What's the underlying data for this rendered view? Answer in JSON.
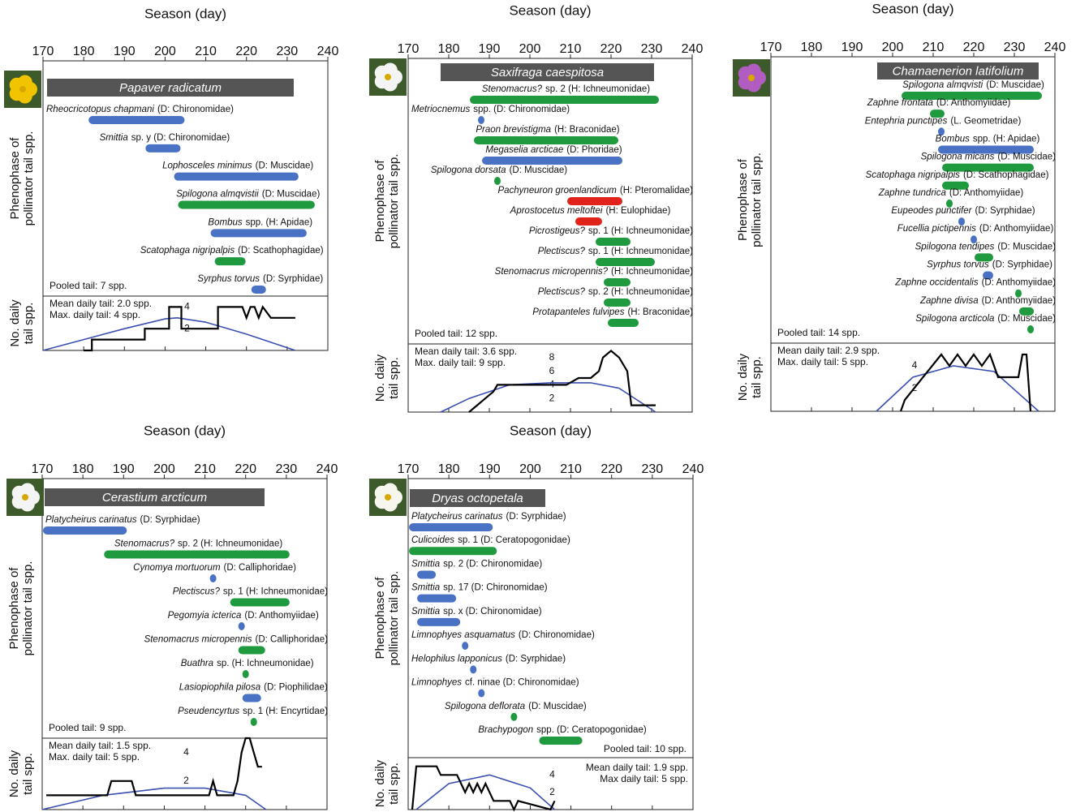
{
  "chart_data": [
    {
      "type": "range",
      "title": "Papaver radicatum",
      "xlabel": "Season (day)",
      "ylabel": [
        "Phenophase of",
        "pollinator tail spp."
      ],
      "xlim": [
        170,
        240
      ],
      "xticks": [
        170,
        180,
        190,
        200,
        210,
        220,
        230,
        240
      ],
      "series": [
        {
          "name": "Rheocricotopus chapmani",
          "rest": "(D: Chironomidae)",
          "color": "#4a72c4",
          "start": 182,
          "end": 204
        },
        {
          "name": "Smittia",
          "rest": "sp. y (D: Chironomidae)",
          "color": "#4a72c4",
          "start": 196,
          "end": 203
        },
        {
          "name": "Lophosceles minimus",
          "rest": "(D: Muscidae)",
          "color": "#4a72c4",
          "start": 203,
          "end": 232
        },
        {
          "name": "Spilogona almqvistii",
          "rest": "(D: Muscidae)",
          "color": "#1f9a3e",
          "start": 204,
          "end": 236
        },
        {
          "name": "Bombus",
          "rest": "spp. (H: Apidae)",
          "color": "#4a72c4",
          "start": 212,
          "end": 234
        },
        {
          "name": "Scatophaga nigripalpis",
          "rest": "(D: Scathophagidae)",
          "color": "#1f9a3e",
          "start": 213,
          "end": 219
        },
        {
          "name": "Syrphus torvus",
          "rest": "(D: Syrphidae)",
          "color": "#4a72c4",
          "start": 222,
          "end": 224
        }
      ],
      "pooled": "Pooled tail: 7 spp.",
      "mean": "Mean daily tail: 2.0 spp.",
      "max": "Max. daily tail: 4 spp.",
      "daily": {
        "ylabel": [
          "No. daily",
          "tail spp."
        ],
        "ylim": [
          0,
          5
        ],
        "yticks": [
          2,
          4
        ],
        "x": [
          180,
          182,
          182,
          195,
          195,
          201,
          201,
          204,
          204,
          213,
          213,
          219,
          220,
          221,
          222,
          223,
          224,
          226,
          232
        ],
        "values": [
          0,
          0,
          1,
          1,
          2,
          2,
          4,
          4,
          2,
          2,
          4,
          4,
          3,
          4,
          4,
          3,
          4,
          3,
          3
        ],
        "model_x": [
          170,
          180,
          190,
          200,
          203,
          210,
          220,
          232
        ],
        "model_values": [
          0,
          1,
          2,
          2.9,
          3,
          2.6,
          1.5,
          0
        ]
      }
    },
    {
      "type": "range",
      "title": "Saxifraga caespitosa",
      "xlabel": "Season (day)",
      "ylabel": [
        "Phenophase of",
        "pollinator tail spp."
      ],
      "xlim": [
        170,
        240
      ],
      "xticks": [
        170,
        180,
        190,
        200,
        210,
        220,
        230,
        240
      ],
      "series": [
        {
          "name": "Stenomacrus?",
          "rest": "sp. 2 (H: Ichneumonidae)",
          "color": "#1f9a3e",
          "start": 186,
          "end": 231
        },
        {
          "name": "Metriocnemus",
          "rest": "spp. (D: Chironomidae)",
          "color": "#4a72c4",
          "start": 188,
          "end": 188
        },
        {
          "name": "Praon brevistigma",
          "rest": "(H: Braconidae)",
          "color": "#1f9a3e",
          "start": 187,
          "end": 221
        },
        {
          "name": "Megaselia arcticae",
          "rest": "(D: Phoridae)",
          "color": "#4a72c4",
          "start": 189,
          "end": 222
        },
        {
          "name": "Spilogona dorsata",
          "rest": "(D: Muscidae)",
          "color": "#1f9a3e",
          "start": 192,
          "end": 192
        },
        {
          "name": "Pachyneuron groenlandicum",
          "rest": "(H: Pteromalidae)",
          "color": "#e0241b",
          "start": 210,
          "end": 222
        },
        {
          "name": "Aprostocetus meltoftei",
          "rest": "(H: Eulophidae)",
          "color": "#e0241b",
          "start": 212,
          "end": 217
        },
        {
          "name": "Picrostigeus?",
          "rest": "sp. 1 (H: Ichneumonidae)",
          "color": "#1f9a3e",
          "start": 217,
          "end": 224
        },
        {
          "name": "Plectiscus?",
          "rest": "sp. 1 (H: Ichneumonidae)",
          "color": "#1f9a3e",
          "start": 217,
          "end": 230
        },
        {
          "name": "Stenomacrus micropennis?",
          "rest": "(H: Ichneumonidae)",
          "color": "#1f9a3e",
          "start": 219,
          "end": 224
        },
        {
          "name": "Plectiscus?",
          "rest": "sp. 2 (H: Ichneumonidae)",
          "color": "#1f9a3e",
          "start": 219,
          "end": 224
        },
        {
          "name": "Protapanteles fulvipes",
          "rest": "(H: Braconidae)",
          "color": "#1f9a3e",
          "start": 220,
          "end": 226
        }
      ],
      "pooled": "Pooled tail: 12 spp.",
      "mean": "Mean daily tail: 3.6 spp.",
      "max": "Max. daily tail: 9 spp.",
      "daily": {
        "ylabel": [
          "No. daily",
          "tail spp."
        ],
        "ylim": [
          0,
          10
        ],
        "yticks": [
          2,
          4,
          6,
          8
        ],
        "x": [
          185,
          187,
          189,
          191,
          192,
          200,
          209,
          212,
          215,
          217,
          218,
          220,
          222,
          224,
          225,
          231
        ],
        "values": [
          0,
          1,
          2,
          3,
          4,
          4,
          4,
          5,
          5,
          6,
          8,
          9,
          8,
          6,
          1,
          1
        ],
        "model_x": [
          178,
          185,
          195,
          205,
          215,
          222,
          231
        ],
        "model_values": [
          0,
          2,
          4,
          4.3,
          4.3,
          3.5,
          0
        ]
      }
    },
    {
      "type": "range",
      "title": "Chamaenerion latifolium",
      "xlabel": "Season (day)",
      "ylabel": [
        "Phenophase of",
        "pollinator tail spp."
      ],
      "xlim": [
        170,
        240
      ],
      "xticks": [
        170,
        180,
        190,
        200,
        210,
        220,
        230,
        240
      ],
      "series": [
        {
          "name": "Spilogona almqvisti",
          "rest": "(D: Muscidae)",
          "color": "#1f9a3e",
          "start": 203,
          "end": 236
        },
        {
          "name": "Zaphne frontata",
          "rest": "(D: Anthomyiidae)",
          "color": "#1f9a3e",
          "start": 210,
          "end": 212
        },
        {
          "name": "Entephria punctipes",
          "rest": "(L. Geometridae)",
          "color": "#4a72c4",
          "start": 212,
          "end": 212
        },
        {
          "name": "Bombus",
          "rest": "spp. (H: Apidae)",
          "color": "#4a72c4",
          "start": 212,
          "end": 234
        },
        {
          "name": "Spilogona micans",
          "rest": "(D: Muscidae)",
          "color": "#1f9a3e",
          "start": 213,
          "end": 234
        },
        {
          "name": "Scatophaga nigripalpis",
          "rest": "(D: Scathophagidae)",
          "color": "#1f9a3e",
          "start": 213,
          "end": 218
        },
        {
          "name": "Zaphne tundrica",
          "rest": "(D: Anthomyiidae)",
          "color": "#1f9a3e",
          "start": 214,
          "end": 214
        },
        {
          "name": "Eupeodes punctifer",
          "rest": "(D: Syrphidae)",
          "color": "#4a72c4",
          "start": 217,
          "end": 217
        },
        {
          "name": "Fucellia pictipennis",
          "rest": "(D: Anthomyiidae)",
          "color": "#4a72c4",
          "start": 220,
          "end": 220
        },
        {
          "name": "Spilogona tendipes",
          "rest": "(D: Muscidae)",
          "color": "#1f9a3e",
          "start": 221,
          "end": 224
        },
        {
          "name": "Syrphus torvus",
          "rest": "(D: Syrphidae)",
          "color": "#4a72c4",
          "start": 223,
          "end": 224
        },
        {
          "name": "Zaphne occidentalis",
          "rest": "(D: Anthomyiidae)",
          "color": "#1f9a3e",
          "start": 231,
          "end": 231
        },
        {
          "name": "Zaphne divisa",
          "rest": "(D: Anthomyiidae)",
          "color": "#1f9a3e",
          "start": 232,
          "end": 234
        },
        {
          "name": "Spilogona arcticola",
          "rest": "(D: Muscidae)",
          "color": "#1f9a3e",
          "start": 234,
          "end": 234
        }
      ],
      "pooled": "Pooled tail: 14 spp.",
      "mean": "Mean daily tail: 2.9 spp.",
      "max": "Max. daily tail: 5 spp.",
      "daily": {
        "ylabel": [
          "No. daily",
          "tail spp."
        ],
        "ylim": [
          0,
          6
        ],
        "yticks": [
          2,
          4
        ],
        "x": [
          202,
          203,
          203,
          212,
          214,
          216,
          218,
          220,
          222,
          224,
          226,
          231,
          232,
          233,
          234
        ],
        "values": [
          0,
          1,
          1,
          5,
          4,
          5,
          4,
          5,
          4,
          5,
          3,
          3,
          5,
          5,
          0
        ],
        "model_x": [
          196,
          205,
          215,
          225,
          236
        ],
        "model_values": [
          0,
          3,
          4,
          3.5,
          0
        ]
      }
    },
    {
      "type": "range",
      "title": "Cerastium arcticum",
      "xlabel": "Season (day)",
      "ylabel": [
        "Phenophase of",
        "pollinator tail spp."
      ],
      "xlim": [
        170,
        240
      ],
      "xticks": [
        170,
        180,
        190,
        200,
        210,
        220,
        230,
        240
      ],
      "series": [
        {
          "name": "Platycheirus carinatus",
          "rest": "(D: Syrphidae)",
          "color": "#4a72c4",
          "start": 171,
          "end": 190
        },
        {
          "name": "Stenomacrus?",
          "rest": "sp. 2 (H: Ichneumonidae)",
          "color": "#1f9a3e",
          "start": 186,
          "end": 230
        },
        {
          "name": "Cynomya mortuorum",
          "rest": "(D: Calliphoridae)",
          "color": "#4a72c4",
          "start": 212,
          "end": 212
        },
        {
          "name": "Plectiscus?",
          "rest": "sp. 1 (H: Ichneumonidae)",
          "color": "#1f9a3e",
          "start": 217,
          "end": 230
        },
        {
          "name": "Pegomyia icterica",
          "rest": "(D: Anthomyiidae)",
          "color": "#4a72c4",
          "start": 219,
          "end": 219
        },
        {
          "name": "Stenomacrus micropennis",
          "rest": "(D: Calliphoridae)",
          "color": "#1f9a3e",
          "start": 219,
          "end": 224
        },
        {
          "name": "Buathra",
          "rest": "sp. (H: Ichneumonidae)",
          "color": "#1f9a3e",
          "start": 220,
          "end": 220
        },
        {
          "name": "Lasiopiophila pilosa",
          "rest": "(D: Piophilidae)",
          "color": "#4a72c4",
          "start": 220,
          "end": 223
        },
        {
          "name": "Pseudencyrtus",
          "rest": "sp. 1 (H: Encyrtidae)",
          "color": "#1f9a3e",
          "start": 222,
          "end": 222
        }
      ],
      "pooled": "Pooled tail: 9 spp.",
      "mean": "Mean daily tail: 1.5 spp.",
      "max": "Max. daily tail: 5 spp.",
      "daily": {
        "ylabel": [
          "No. daily",
          "tail spp."
        ],
        "ylim": [
          0,
          5
        ],
        "yticks": [
          2,
          4
        ],
        "x": [
          171,
          186,
          187,
          192,
          193,
          211,
          212,
          213,
          217,
          218,
          219,
          220,
          221,
          222,
          223,
          224
        ],
        "values": [
          1,
          1,
          2,
          2,
          1,
          1,
          2,
          1,
          1,
          2,
          4,
          5,
          5,
          4,
          3,
          3
        ],
        "model_x": [
          170,
          185,
          200,
          210,
          220,
          225
        ],
        "model_values": [
          0,
          1,
          1.5,
          1.5,
          1,
          0
        ]
      }
    },
    {
      "type": "range",
      "title": "Dryas octopetala",
      "xlabel": "Season (day)",
      "ylabel": [
        "Phenophase of",
        "pollinator tail spp."
      ],
      "xlim": [
        170,
        240
      ],
      "xticks": [
        170,
        180,
        190,
        200,
        210,
        220,
        230,
        240
      ],
      "series": [
        {
          "name": "Platycheirus carinatus",
          "rest": "(D: Syrphidae)",
          "color": "#4a72c4",
          "start": 171,
          "end": 190
        },
        {
          "name": "Culicoides",
          "rest": "sp. 1 (D: Ceratopogonidae)",
          "color": "#1f9a3e",
          "start": 171,
          "end": 191
        },
        {
          "name": "Smittia",
          "rest": "sp. 2 (D: Chironomidae)",
          "color": "#4a72c4",
          "start": 173,
          "end": 176
        },
        {
          "name": "Smittia",
          "rest": "sp. 17 (D: Chironomidae)",
          "color": "#4a72c4",
          "start": 173,
          "end": 181
        },
        {
          "name": "Smittia",
          "rest": "sp. x (D: Chironomidae)",
          "color": "#4a72c4",
          "start": 173,
          "end": 182
        },
        {
          "name": "Limnophyes asquamatus",
          "rest": "(D: Chironomidae)",
          "color": "#4a72c4",
          "start": 184,
          "end": 184
        },
        {
          "name": "Helophilus lapponicus",
          "rest": "(D: Syrphidae)",
          "color": "#4a72c4",
          "start": 186,
          "end": 186
        },
        {
          "name": "Limnophyes",
          "rest": "cf. ninae (D: Chironomidae)",
          "color": "#4a72c4",
          "start": 188,
          "end": 188
        },
        {
          "name": "Spilogona deflorata",
          "rest": "(D: Muscidae)",
          "color": "#1f9a3e",
          "start": 196,
          "end": 196
        },
        {
          "name": "Brachypogon",
          "rest": "spp. (D: Ceratopogonidae)",
          "color": "#1f9a3e",
          "start": 203,
          "end": 212
        }
      ],
      "pooled": "Pooled tail: 10 spp.",
      "mean": "Mean daily tail: 1.9 spp.",
      "max": "Max daily tail: 5 spp.",
      "daily": {
        "ylabel": [
          "No. daily",
          "tail spp."
        ],
        "ylim": [
          0,
          6
        ],
        "yticks": [
          2,
          4
        ],
        "x": [
          171,
          172,
          174,
          177,
          178,
          182,
          183,
          184,
          185,
          186,
          187,
          188,
          189,
          190,
          191,
          195,
          196,
          197,
          205,
          206
        ],
        "values": [
          0,
          5,
          5,
          5,
          4,
          4,
          3,
          2,
          3,
          2,
          3,
          2,
          3,
          2,
          1,
          1,
          0,
          1,
          0,
          1
        ],
        "model_x": [
          172,
          180,
          190,
          200,
          206
        ],
        "model_values": [
          0,
          3,
          4,
          2.5,
          0
        ]
      }
    }
  ]
}
